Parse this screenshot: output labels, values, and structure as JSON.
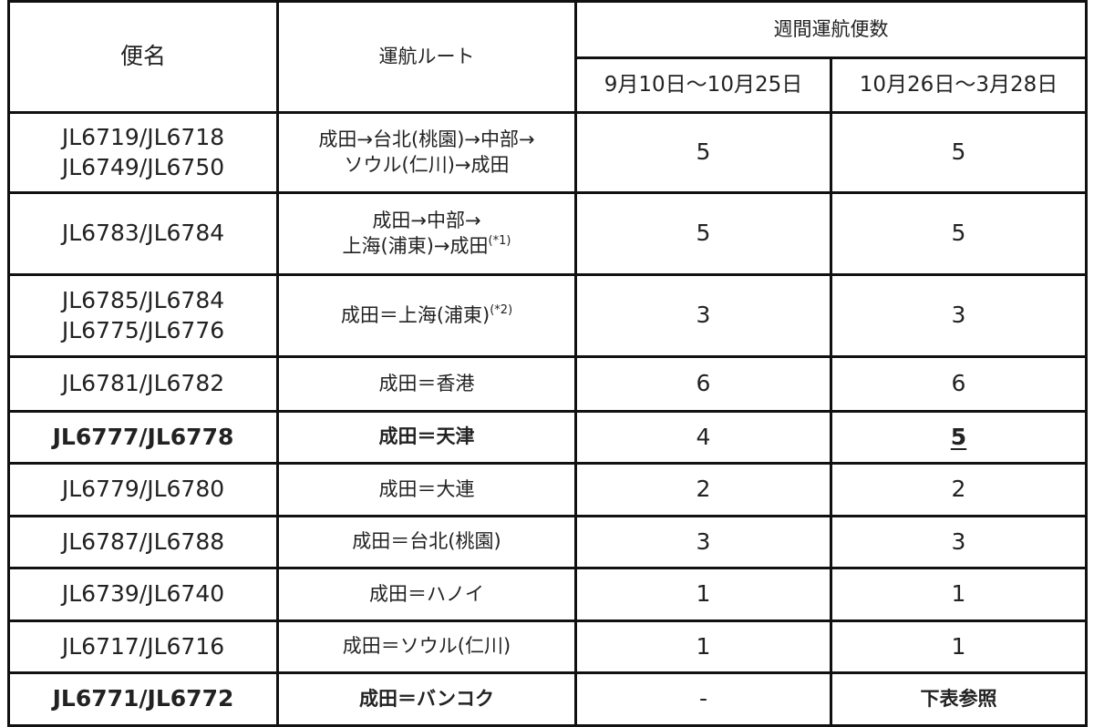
{
  "header": {
    "flight": "便名",
    "route": "運航ルート",
    "weekly": "週間運航便数",
    "period1": "9月10日～10月25日",
    "period2": "10月26日～3月28日"
  },
  "rows": [
    {
      "flights": [
        "JL6719/JL6718",
        "JL6749/JL6750"
      ],
      "route": [
        "成田→台北(桃園)→中部→",
        "ソウル(仁川)→成田"
      ],
      "note": "",
      "p1": "5",
      "p2": "5",
      "bold": false
    },
    {
      "flights": [
        "JL6783/JL6784"
      ],
      "route": [
        "成田→中部→",
        "上海(浦東)→成田"
      ],
      "note": "(*1)",
      "p1": "5",
      "p2": "5",
      "bold": false
    },
    {
      "flights": [
        "JL6785/JL6784",
        "JL6775/JL6776"
      ],
      "route": [
        "成田＝上海(浦東)"
      ],
      "note": "(*2)",
      "p1": "3",
      "p2": "3",
      "bold": false
    },
    {
      "flights": [
        "JL6781/JL6782"
      ],
      "route": [
        "成田＝香港"
      ],
      "note": "",
      "p1": "6",
      "p2": "6",
      "bold": false
    },
    {
      "flights": [
        "JL6777/JL6778"
      ],
      "route": [
        "成田＝天津"
      ],
      "note": "",
      "p1": "4",
      "p2": "5",
      "bold": true,
      "p2_underline": true
    },
    {
      "flights": [
        "JL6779/JL6780"
      ],
      "route": [
        "成田＝大連"
      ],
      "note": "",
      "p1": "2",
      "p2": "2",
      "bold": false
    },
    {
      "flights": [
        "JL6787/JL6788"
      ],
      "route": [
        "成田＝台北(桃園)"
      ],
      "note": "",
      "p1": "3",
      "p2": "3",
      "bold": false
    },
    {
      "flights": [
        "JL6739/JL6740"
      ],
      "route": [
        "成田＝ハノイ"
      ],
      "note": "",
      "p1": "1",
      "p2": "1",
      "bold": false
    },
    {
      "flights": [
        "JL6717/JL6716"
      ],
      "route": [
        "成田＝ソウル(仁川)"
      ],
      "note": "",
      "p1": "1",
      "p2": "1",
      "bold": false
    },
    {
      "flights": [
        "JL6771/JL6772"
      ],
      "route": [
        "成田＝バンコク"
      ],
      "note": "",
      "p1": "-",
      "p2": "下表参照",
      "bold": true
    }
  ]
}
